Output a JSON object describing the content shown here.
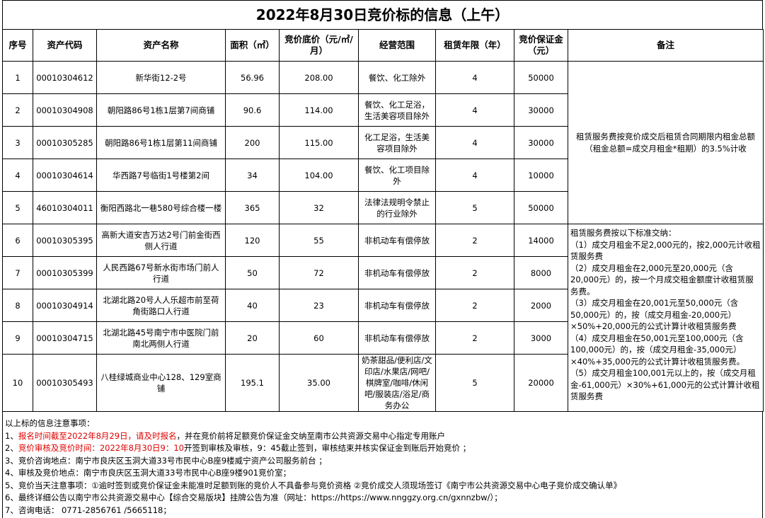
{
  "title": "2022年8月30日竞价标的信息（上午）",
  "headers": [
    "序号",
    "资产代码",
    "资产名称",
    "面积（㎡）",
    "竞价底价（元/㎡/月）",
    "经营范围",
    "租赁年限（年）",
    "竞价保证金（元）",
    "备注"
  ],
  "rows": [
    {
      "no": "1",
      "code": "00010304612",
      "name": "新华街12-2号",
      "area": "56.96",
      "price": "208.00",
      "scope": "餐饮、化工除外",
      "years": "4",
      "deposit": "50000"
    },
    {
      "no": "2",
      "code": "00010304908",
      "name": "朝阳路86号1栋1层第7间商铺",
      "area": "90.6",
      "price": "114.00",
      "scope": "餐饮、化工足浴，生活美容项目除外",
      "years": "4",
      "deposit": "30000"
    },
    {
      "no": "3",
      "code": "00010305285",
      "name": "朝阳路86号1栋1层第11间商铺",
      "area": "200",
      "price": "115.00",
      "scope": "化工足浴，生活美容项目除外",
      "years": "4",
      "deposit": "30000"
    },
    {
      "no": "4",
      "code": "00010304614",
      "name": "华西路7号临街1号楼第2间",
      "area": "34",
      "price": "104.00",
      "scope": "餐饮、化工项目除外",
      "years": "4",
      "deposit": "10000"
    },
    {
      "no": "5",
      "code": "46010304011",
      "name": "衡阳西路北一巷580号综合楼一楼",
      "area": "365",
      "price": "32",
      "scope": "法律法规明令禁止的行业除外",
      "years": "5",
      "deposit": "50000"
    },
    {
      "no": "6",
      "code": "00010305395",
      "name": "高新大道安吉万达2号门前金街西侧人行道",
      "area": "120",
      "price": "55",
      "scope": "非机动车有偿停放",
      "years": "2",
      "deposit": "14000"
    },
    {
      "no": "7",
      "code": "00010305399",
      "name": "人民西路67号新水街市场门前人行道",
      "area": "50",
      "price": "72",
      "scope": "非机动车有偿停放",
      "years": "2",
      "deposit": "8000"
    },
    {
      "no": "8",
      "code": "00010304914",
      "name": "北湖北路20号人人乐超市前至荷角街路口人行道",
      "area": "40",
      "price": "23",
      "scope": "非机动车有偿停放",
      "years": "2",
      "deposit": "2000"
    },
    {
      "no": "9",
      "code": "00010304715",
      "name": "北湖北路45号南宁市中医院门前南北两侧人行道",
      "area": "20",
      "price": "60",
      "scope": "非机动车有偿停放",
      "years": "2",
      "deposit": "3000"
    },
    {
      "no": "10",
      "code": "00010305493",
      "name": "八桂绿城商业中心128、129室商铺",
      "area": "195.1",
      "price": "35.00",
      "scope": "奶茶甜品/便利店/文印店/水果店/网吧/棋牌室/咖啡/休闲吧/服装店/浴足/商务办公",
      "years": "5",
      "deposit": "20000"
    }
  ],
  "remark1": "租赁服务费按竞价成交后租赁合同期限内租金总额（租金总额=成交月租金*租期）的3.5%计收",
  "remark2": [
    "租赁服务费按以下标准交纳：",
    "（1）成交月租金不足2,000元的，按2,000元计收租赁服务费",
    "（2）成交月租金在2,000元至20,000元（含20,000元）的，按一个月成交租金额度计收租赁服务费。",
    "（3）成交月租金在20,001元至50,000元（含50,000元）的，按（成交月租金-20,000元）×50%+20,000元的公式计算计收租赁服务费",
    "（4）成交月租金在50,001元至100,000元（含100,000元）的，按（成交月租金-35,000元）×40%+35,000元的公式计算计收租赁服务费。",
    "（5）成交月租金100,001元以上的，按（成交月租金-61,000元）×30%+61,000元的公式计算计收租赁服务费"
  ],
  "notes": {
    "heading": "以上标的信息注意事项：",
    "l1_prefix": "1、",
    "l1_red": "报名时间截至2022年8月29日，请及时报名",
    "l1_rest": "，并在竞价前将足额竞价保证金交纳至南市公共资源交易中心指定专用账户",
    "l2_prefix": "2、",
    "l2_red": "竞价审核及竞价时间：2022年8月30日9：10",
    "l2_rest": "开签到审核及审核，9：45截止签到，审核结束并核实保证金到账后开始竞价 ；",
    "l3": "3、竞价咨询地点：南宁市良庆区玉洞大道33号市民中心B座9楼威宁资产公司服务前台 ；",
    "l4": "4、审核及竞价地点：南宁市良庆区玉洞大道33号市民中心B座9楼901竞价室；",
    "l5": "5、竞价当天注意事项：①逾时签到或竞价保证金未能准时足额到账的竞价人不具备参与竞价资格 ②竞价成交人须现场签订《南宁市公共资源交易中心电子竞价成交确认单》",
    "l6": "6、最终详细公告以南宁市公共资源交易中心【综合交易版块】挂牌公告为准（网址：https://https://www.nnggzy.org.cn/gxnnzbw/）；",
    "l7": "7、咨询电话： 0771-2856761 /5665118；"
  },
  "colors": {
    "red": "#e00000"
  }
}
